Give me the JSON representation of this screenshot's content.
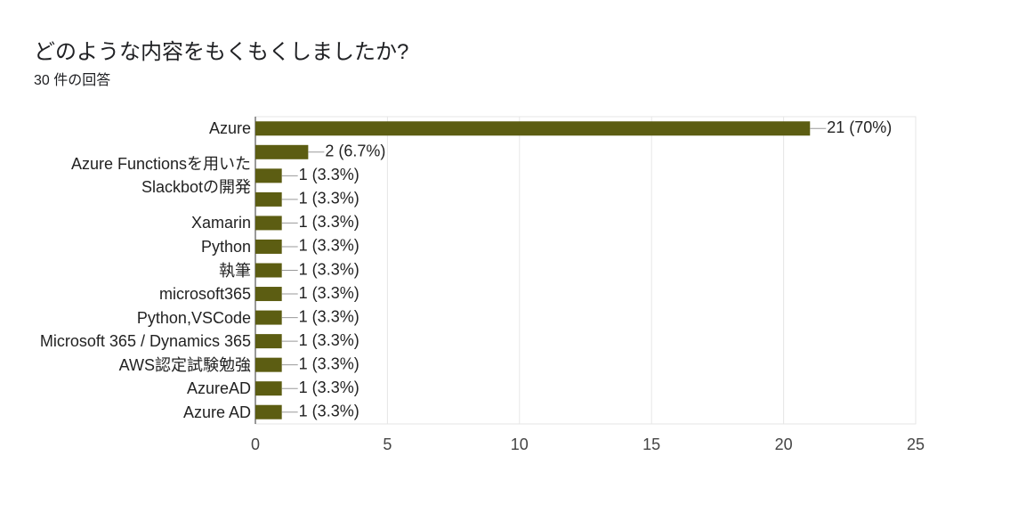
{
  "chart_data": {
    "type": "bar",
    "orientation": "horizontal",
    "title": "どのような内容をもくもくしましたか?",
    "subtitle": "30 件の回答",
    "categories": [
      "Azure",
      null,
      "Azure Functionsを用いた\nSlackbotの開発",
      null,
      "Xamarin",
      "Python",
      "執筆",
      "microsoft365",
      "Python,VSCode",
      "Microsoft 365 / Dynamics 365",
      "AWS認定試験勉強",
      "AzureAD",
      "Azure AD"
    ],
    "values": [
      21,
      2,
      1,
      1,
      1,
      1,
      1,
      1,
      1,
      1,
      1,
      1,
      1
    ],
    "value_labels": [
      "21 (70%)",
      "2 (6.7%)",
      "1 (3.3%)",
      "1 (3.3%)",
      "1 (3.3%)",
      "1 (3.3%)",
      "1 (3.3%)",
      "1 (3.3%)",
      "1 (3.3%)",
      "1 (3.3%)",
      "1 (3.3%)",
      "1 (3.3%)",
      "1 (3.3%)"
    ],
    "color": "#5c5d12",
    "xlim": [
      0,
      25
    ],
    "xticks": [
      0,
      5,
      10,
      15,
      20,
      25
    ],
    "grid": true
  }
}
